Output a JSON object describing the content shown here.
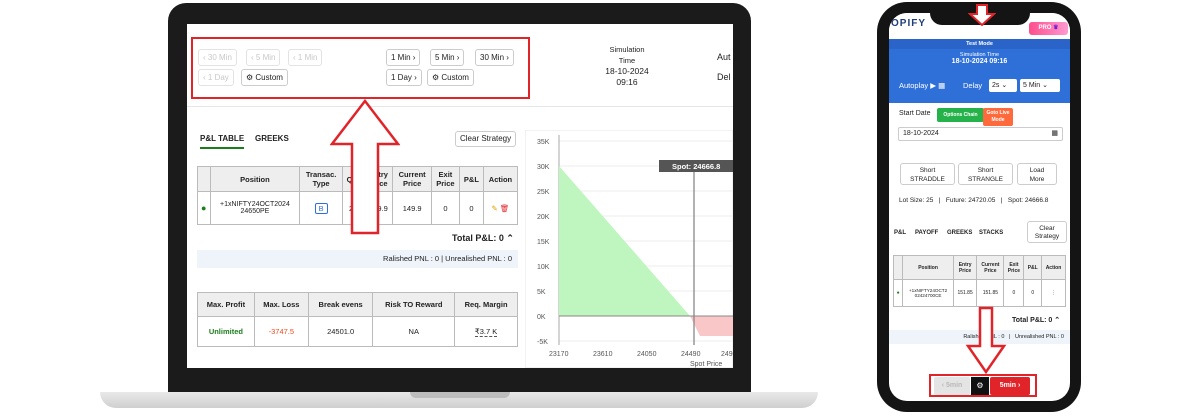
{
  "laptop": {
    "toolbar": {
      "left_row1": [
        "30 Min",
        "5 Min",
        "1 Min"
      ],
      "left_row2": [
        "1 Day",
        "Custom"
      ],
      "right_row1": [
        "1 Min",
        "5 Min",
        "30 Min"
      ],
      "right_row2": [
        "1 Day",
        "Custom"
      ]
    },
    "simulation": {
      "label_line1": "Simulation",
      "label_line2": "Time",
      "date": "18-10-2024",
      "time": "09:16"
    },
    "right_cut": {
      "line1": "Aut",
      "line2": "Del"
    },
    "tabs": [
      "P&L TABLE",
      "GREEKS"
    ],
    "clear_strategy": "Clear Strategy",
    "pl_table": {
      "headers": [
        [
          "",
          ""
        ],
        [
          "Position",
          ""
        ],
        [
          "Transac.",
          "Type"
        ],
        [
          "Qtn",
          ""
        ],
        [
          "Entry",
          "Price"
        ],
        [
          "Current",
          "Price"
        ],
        [
          "Exit",
          "Price"
        ],
        [
          "P&L",
          ""
        ],
        [
          "Action",
          ""
        ]
      ],
      "row": {
        "position_line1": "+1xNIFTY24OCT2024",
        "position_line2": "24650PE",
        "type": "B",
        "qty": "25",
        "entry": "149.9",
        "current": "149.9",
        "exit": "0",
        "pnl": "0"
      }
    },
    "total_pl": "Total P&L: 0",
    "pnl_summary": "Ralished PNL : 0   |   Unrealished PNL : 0",
    "metrics": {
      "headers": [
        "Max. Profit",
        "Max. Loss",
        "Break evens",
        "Risk TO Reward",
        "Req. Margin"
      ],
      "values": [
        "Unlimited",
        "-3747.5",
        "24501.0",
        "NA",
        "₹3.7 K"
      ]
    },
    "chart": {
      "spot_label": "Spot: 24666.8",
      "y_ticks": [
        "35K",
        "30K",
        "25K",
        "20K",
        "15K",
        "10K",
        "5K",
        "0K",
        "-5K"
      ],
      "x_ticks": [
        "23170",
        "23610",
        "24050",
        "24490",
        "249"
      ],
      "xlabel": "Spot Price"
    }
  },
  "phone": {
    "brand": "OPIFY",
    "pro_badge": "PRO",
    "test_mode": "Test Mode",
    "sim_label": "Simulation Time",
    "sim_value": "18-10-2024 09:16",
    "autoplay_label": "Autoplay",
    "delay_label": "Delay",
    "delay_value": "2s",
    "interval_value": "5 Min",
    "options_chain": "Options Chain",
    "goto_live_line1": "Goto Live",
    "goto_live_line2": "Mode",
    "start_date_label": "Start Date",
    "start_date_value": "18-10-2024",
    "strategies": [
      [
        "Short",
        "STRADDLE"
      ],
      [
        "Short",
        "STRANGLE"
      ],
      [
        "Load",
        "More"
      ]
    ],
    "info": "Lot Size: 25   |   Future: 24720.05   |   Spot: 24666.8",
    "tabs": [
      "P&L",
      "PAYOFF",
      "GREEKS",
      "STACKS"
    ],
    "clear_strategy_line1": "Clear",
    "clear_strategy_line2": "Strategy",
    "table": {
      "headers": [
        [
          "",
          ""
        ],
        [
          "Position",
          ""
        ],
        [
          "Entry",
          "Price"
        ],
        [
          "Current",
          "Price"
        ],
        [
          "Exit",
          "Price"
        ],
        [
          "P&L",
          ""
        ],
        [
          "Action",
          ""
        ]
      ],
      "row": {
        "position_line1": "+1xNIFTY24OCT2",
        "position_line2": "02424700CE",
        "entry": "151.85",
        "current": "151.85",
        "exit": "0",
        "pnl": "0"
      }
    },
    "total_pl": "Total P&L: 0",
    "pnl_summary": "Ralished PNL : 0   |   Unrealished PNL : 0",
    "bottom_nav": {
      "prev": "5min",
      "next": "5min"
    }
  },
  "colors": {
    "highlight": "#e0242a",
    "accent_blue": "#2f6fd8",
    "profit_green": "#bff5bf",
    "loss_red": "#f9c7c7",
    "text_green": "#1c7d1c",
    "text_red": "#f04a1d"
  }
}
